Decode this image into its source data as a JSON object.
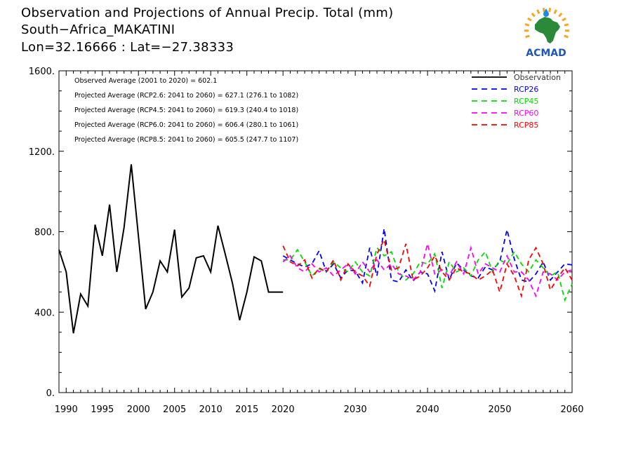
{
  "header": {
    "line1": "Observation and Projections of Annual Precip. Total (mm)",
    "line2": "South−Africa_MAKATINI",
    "line3": "Lon=32.16666 : Lat=−27.38333"
  },
  "logo": {
    "text": "ACMAD",
    "icon": "africa-map-logo-icon",
    "colors": {
      "africa": "#2a8a3a",
      "text": "#1e57b8",
      "rays": "#f5a623",
      "drop": "#1e88e5"
    }
  },
  "chart_data": {
    "type": "line",
    "title": "Observation and Projections of Annual Precip. Total (mm)",
    "xlim": [
      1989,
      2060
    ],
    "ylim": [
      0,
      1600
    ],
    "x_ticks": [
      1990,
      1995,
      2000,
      2005,
      2010,
      2015,
      2020,
      2030,
      2040,
      2050,
      2060
    ],
    "x_tick_labels": [
      "1990",
      "1995",
      "2000",
      "2005",
      "2010",
      "2015",
      "2020",
      "2030",
      "2040",
      "2050",
      "2060"
    ],
    "y_ticks": [
      0,
      400,
      800,
      1200,
      1600
    ],
    "y_tick_labels": [
      "0.",
      "400.",
      "800.",
      "1200.",
      "1600."
    ],
    "annotations": [
      "Observed Average (2001 to 2020) = 602.1",
      "Projected Average (RCP2.6: 2041 to 2060) = 627.1 (276.1 to 1082)",
      "Projected Average (RCP4.5: 2041 to 2060) = 619.3 (240.4 to 1018)",
      "Projected Average (RCP6.0: 2041 to 2060) = 606.4 (280.1 to 1061)",
      "Projected Average (RCP8.5: 2041 to 2060) = 605.5 (247.7 to 1107)"
    ],
    "legend_position": "top-right",
    "series": [
      {
        "name": "Observation",
        "color": "#000000",
        "dash": "solid",
        "x": [
          1989,
          1990,
          1991,
          1992,
          1993,
          1994,
          1995,
          1996,
          1997,
          1998,
          1999,
          2000,
          2001,
          2002,
          2003,
          2004,
          2005,
          2006,
          2007,
          2008,
          2009,
          2010,
          2011,
          2012,
          2013,
          2014,
          2015,
          2016,
          2017,
          2018,
          2019,
          2020
        ],
        "y": [
          710,
          600,
          295,
          490,
          430,
          835,
          680,
          935,
          600,
          820,
          1135,
          775,
          415,
          500,
          655,
          600,
          810,
          475,
          520,
          670,
          680,
          600,
          830,
          690,
          545,
          360,
          500,
          675,
          655,
          500,
          500,
          500
        ]
      },
      {
        "name": "RCP26",
        "color": "#0000ff",
        "dash": "dashed",
        "x": [
          2020,
          2021,
          2022,
          2023,
          2024,
          2025,
          2026,
          2027,
          2028,
          2029,
          2030,
          2031,
          2032,
          2033,
          2034,
          2035,
          2036,
          2037,
          2038,
          2039,
          2040,
          2041,
          2042,
          2043,
          2044,
          2045,
          2046,
          2047,
          2048,
          2049,
          2050,
          2051,
          2052,
          2053,
          2054,
          2055,
          2056,
          2057,
          2058,
          2059,
          2060
        ],
        "y": [
          680,
          660,
          640,
          625,
          640,
          705,
          600,
          640,
          570,
          610,
          605,
          545,
          720,
          580,
          815,
          560,
          550,
          610,
          555,
          600,
          590,
          505,
          700,
          560,
          645,
          610,
          580,
          570,
          625,
          610,
          650,
          810,
          665,
          560,
          550,
          590,
          650,
          560,
          600,
          640,
          635
        ]
      },
      {
        "name": "RCP45",
        "color": "#00dd00",
        "dash": "dashed",
        "x": [
          2020,
          2021,
          2022,
          2023,
          2024,
          2025,
          2026,
          2027,
          2028,
          2029,
          2030,
          2031,
          2032,
          2033,
          2034,
          2035,
          2036,
          2037,
          2038,
          2039,
          2040,
          2041,
          2042,
          2043,
          2044,
          2045,
          2046,
          2047,
          2048,
          2049,
          2050,
          2051,
          2052,
          2053,
          2054,
          2055,
          2056,
          2057,
          2058,
          2059,
          2060
        ],
        "y": [
          660,
          660,
          710,
          650,
          580,
          615,
          600,
          650,
          620,
          600,
          650,
          600,
          580,
          720,
          680,
          700,
          600,
          560,
          590,
          650,
          640,
          690,
          520,
          650,
          600,
          620,
          580,
          660,
          700,
          600,
          660,
          640,
          700,
          640,
          600,
          660,
          620,
          580,
          600,
          460,
          540
        ]
      },
      {
        "name": "RCP60",
        "color": "#ff00ff",
        "dash": "dashed",
        "x": [
          2020,
          2021,
          2022,
          2023,
          2024,
          2025,
          2026,
          2027,
          2028,
          2029,
          2030,
          2031,
          2032,
          2033,
          2034,
          2035,
          2036,
          2037,
          2038,
          2039,
          2040,
          2041,
          2042,
          2043,
          2044,
          2045,
          2046,
          2047,
          2048,
          2049,
          2050,
          2051,
          2052,
          2053,
          2054,
          2055,
          2056,
          2057,
          2058,
          2059,
          2060
        ],
        "y": [
          650,
          680,
          620,
          600,
          640,
          600,
          620,
          580,
          610,
          640,
          590,
          650,
          600,
          660,
          610,
          640,
          590,
          580,
          560,
          600,
          740,
          590,
          610,
          580,
          650,
          590,
          720,
          590,
          640,
          620,
          600,
          680,
          600,
          600,
          560,
          480,
          600,
          590,
          560,
          600,
          610
        ]
      },
      {
        "name": "RCP85",
        "color": "#ff0000",
        "dash": "dashed",
        "x": [
          2020,
          2021,
          2022,
          2023,
          2024,
          2025,
          2026,
          2027,
          2028,
          2029,
          2030,
          2031,
          2032,
          2033,
          2034,
          2035,
          2036,
          2037,
          2038,
          2039,
          2040,
          2041,
          2042,
          2043,
          2044,
          2045,
          2046,
          2047,
          2048,
          2049,
          2050,
          2051,
          2052,
          2053,
          2054,
          2055,
          2056,
          2057,
          2058,
          2059,
          2060
        ],
        "y": [
          730,
          650,
          630,
          660,
          570,
          620,
          600,
          660,
          560,
          640,
          600,
          580,
          530,
          690,
          760,
          610,
          620,
          740,
          560,
          580,
          620,
          680,
          600,
          560,
          620,
          600,
          590,
          560,
          580,
          610,
          500,
          640,
          580,
          480,
          660,
          720,
          640,
          510,
          570,
          620,
          560
        ]
      }
    ]
  }
}
